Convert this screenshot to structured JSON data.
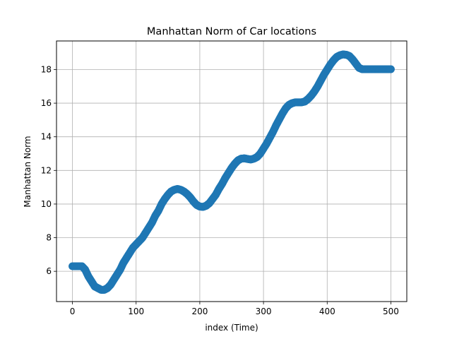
{
  "chart_data": {
    "type": "scatter",
    "title": "Manhattan Norm of Car locations",
    "xlabel": "index (Time)",
    "ylabel": "Manhattan Norm",
    "xlim": [
      -25,
      525
    ],
    "ylim": [
      4.2,
      19.7
    ],
    "xticks": [
      0,
      100,
      200,
      300,
      400,
      500
    ],
    "yticks": [
      6,
      8,
      10,
      12,
      14,
      16,
      18
    ],
    "grid": true,
    "marker_color": "#1f77b4",
    "series": [
      {
        "x_start": 0,
        "x_end": 500,
        "x_step": 1,
        "keypoints": [
          [
            0,
            6.3
          ],
          [
            15,
            6.3
          ],
          [
            20,
            6.1
          ],
          [
            25,
            5.7
          ],
          [
            30,
            5.4
          ],
          [
            35,
            5.1
          ],
          [
            40,
            5.0
          ],
          [
            45,
            4.9
          ],
          [
            50,
            4.9
          ],
          [
            55,
            5.0
          ],
          [
            60,
            5.2
          ],
          [
            65,
            5.5
          ],
          [
            70,
            5.8
          ],
          [
            75,
            6.1
          ],
          [
            80,
            6.5
          ],
          [
            85,
            6.8
          ],
          [
            90,
            7.1
          ],
          [
            95,
            7.4
          ],
          [
            100,
            7.6
          ],
          [
            105,
            7.8
          ],
          [
            110,
            8.0
          ],
          [
            115,
            8.3
          ],
          [
            120,
            8.6
          ],
          [
            125,
            8.9
          ],
          [
            130,
            9.3
          ],
          [
            135,
            9.6
          ],
          [
            140,
            10.0
          ],
          [
            145,
            10.3
          ],
          [
            150,
            10.55
          ],
          [
            155,
            10.75
          ],
          [
            160,
            10.85
          ],
          [
            165,
            10.9
          ],
          [
            170,
            10.85
          ],
          [
            175,
            10.75
          ],
          [
            180,
            10.6
          ],
          [
            185,
            10.4
          ],
          [
            190,
            10.15
          ],
          [
            195,
            9.95
          ],
          [
            200,
            9.85
          ],
          [
            205,
            9.83
          ],
          [
            210,
            9.9
          ],
          [
            215,
            10.05
          ],
          [
            220,
            10.3
          ],
          [
            225,
            10.55
          ],
          [
            230,
            10.9
          ],
          [
            235,
            11.2
          ],
          [
            240,
            11.55
          ],
          [
            245,
            11.85
          ],
          [
            250,
            12.15
          ],
          [
            255,
            12.4
          ],
          [
            260,
            12.6
          ],
          [
            265,
            12.7
          ],
          [
            270,
            12.72
          ],
          [
            275,
            12.68
          ],
          [
            280,
            12.65
          ],
          [
            285,
            12.7
          ],
          [
            290,
            12.8
          ],
          [
            295,
            13.0
          ],
          [
            300,
            13.3
          ],
          [
            305,
            13.6
          ],
          [
            310,
            13.95
          ],
          [
            315,
            14.3
          ],
          [
            320,
            14.7
          ],
          [
            325,
            15.05
          ],
          [
            330,
            15.4
          ],
          [
            335,
            15.7
          ],
          [
            340,
            15.9
          ],
          [
            345,
            16.0
          ],
          [
            350,
            16.05
          ],
          [
            355,
            16.05
          ],
          [
            360,
            16.05
          ],
          [
            365,
            16.1
          ],
          [
            370,
            16.25
          ],
          [
            375,
            16.45
          ],
          [
            380,
            16.7
          ],
          [
            385,
            17.0
          ],
          [
            390,
            17.35
          ],
          [
            395,
            17.7
          ],
          [
            400,
            18.0
          ],
          [
            405,
            18.3
          ],
          [
            410,
            18.55
          ],
          [
            415,
            18.75
          ],
          [
            420,
            18.85
          ],
          [
            425,
            18.9
          ],
          [
            430,
            18.88
          ],
          [
            435,
            18.8
          ],
          [
            440,
            18.6
          ],
          [
            445,
            18.35
          ],
          [
            450,
            18.1
          ],
          [
            455,
            18.02
          ],
          [
            460,
            18.02
          ],
          [
            500,
            18.02
          ]
        ]
      }
    ]
  }
}
